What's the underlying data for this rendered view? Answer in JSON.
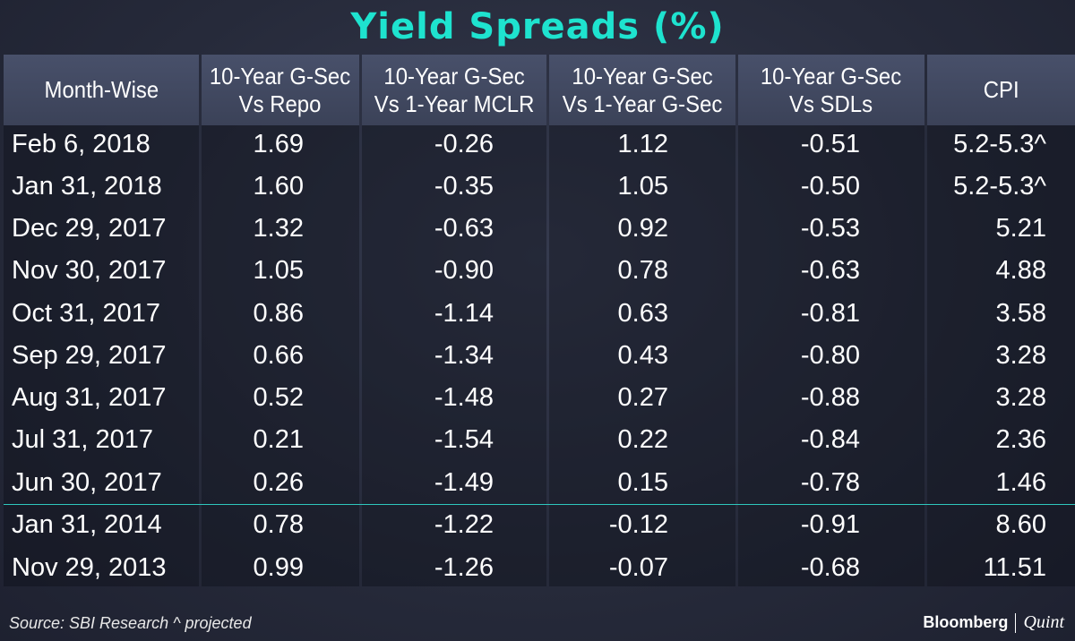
{
  "title": "Yield Spreads (%)",
  "chart_data": {
    "type": "table",
    "title": "Yield Spreads (%)",
    "columns": [
      "Month-Wise",
      "10-Year G-Sec Vs Repo",
      "10-Year G-Sec Vs 1-Year MCLR",
      "10-Year G-Sec Vs 1-Year G-Sec",
      "10-Year G-Sec Vs SDLs",
      "CPI"
    ],
    "header_lines": [
      [
        "Month-Wise"
      ],
      [
        "10-Year G-Sec",
        "Vs Repo"
      ],
      [
        "10-Year G-Sec",
        "Vs 1-Year MCLR"
      ],
      [
        "10-Year G-Sec",
        "Vs 1-Year G-Sec"
      ],
      [
        "10-Year G-Sec",
        "Vs SDLs"
      ],
      [
        "CPI"
      ]
    ],
    "rows": [
      [
        "Feb 6, 2018",
        "1.69",
        "-0.26",
        "1.12",
        "-0.51",
        "5.2-5.3^"
      ],
      [
        "Jan 31, 2018",
        "1.60",
        "-0.35",
        "1.05",
        "-0.50",
        "5.2-5.3^"
      ],
      [
        "Dec 29, 2017",
        "1.32",
        "-0.63",
        "0.92",
        "-0.53",
        "5.21"
      ],
      [
        "Nov 30, 2017",
        "1.05",
        "-0.90",
        "0.78",
        "-0.63",
        "4.88"
      ],
      [
        "Oct 31, 2017",
        "0.86",
        "-1.14",
        "0.63",
        "-0.81",
        "3.58"
      ],
      [
        "Sep 29, 2017",
        "0.66",
        "-1.34",
        "0.43",
        "-0.80",
        "3.28"
      ],
      [
        "Aug 31, 2017",
        "0.52",
        "-1.48",
        "0.27",
        "-0.88",
        "3.28"
      ],
      [
        "Jul 31, 2017",
        "0.21",
        "-1.54",
        "0.22",
        "-0.84",
        "2.36"
      ],
      [
        "Jun 30, 2017",
        "0.26",
        "-1.49",
        "0.15",
        "-0.78",
        "1.46"
      ],
      [
        "Jan 31, 2014",
        "0.78",
        "-1.22",
        "-0.12",
        "-0.91",
        "8.60"
      ],
      [
        "Nov 29, 2013",
        "0.99",
        "-1.26",
        "-0.07",
        "-0.68",
        "11.51"
      ]
    ]
  },
  "footer": {
    "source": "Source: SBI Research ^ projected",
    "brand_primary": "Bloomberg",
    "brand_secondary": "Quint"
  },
  "colors": {
    "title": "#1ee3cf",
    "divider": "#2ec7bd",
    "header_bg": "#434a62",
    "background": "#2a2e3f"
  }
}
